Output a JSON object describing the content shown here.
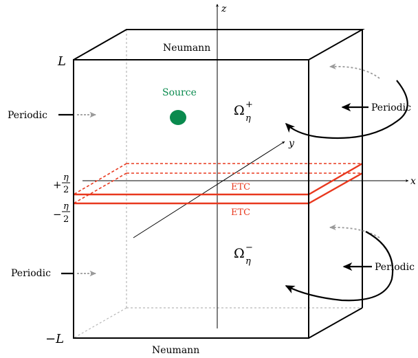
{
  "axes": {
    "x": "x",
    "y": "y",
    "z": "z"
  },
  "domain": {
    "top_bound": "L",
    "bottom_bound": "−L",
    "interface_plus_sign": "+",
    "interface_minus_sign": "−",
    "interface_num": "η",
    "interface_den": "2",
    "upper_region": {
      "base": "Ω",
      "sup": "+",
      "sub": "η"
    },
    "lower_region": {
      "base": "Ω",
      "sup": "−",
      "sub": "η"
    }
  },
  "boundaries": {
    "top": "Neumann",
    "bottom": "Neumann",
    "left_upper": "Periodic",
    "left_lower": "Periodic",
    "right_upper": "Periodic",
    "right_lower": "Periodic",
    "interface_upper": "ETC",
    "interface_lower": "ETC"
  },
  "source": {
    "label": "Source"
  },
  "colors": {
    "interface": "#e8381e",
    "source": "#0a8a4e",
    "hidden_edges": "#b8b8b8",
    "periodic_arrows": "#9a9a9a"
  }
}
